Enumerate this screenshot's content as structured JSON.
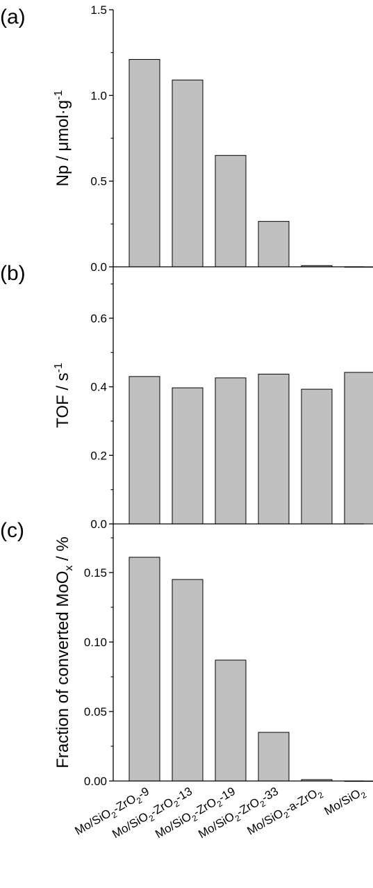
{
  "chart_data": [
    {
      "type": "bar",
      "panel_label": "(a)",
      "ylabel_main": "Np / μmol·g",
      "ylabel_sup": "-1",
      "ylim": [
        0,
        1.5
      ],
      "yticks": [
        "0.0",
        "0.5",
        "1.0",
        "1.5"
      ],
      "ytick_values": [
        0,
        0.5,
        1.0,
        1.5
      ],
      "values": [
        1.21,
        1.09,
        0.65,
        0.265,
        0.007,
        0.0
      ]
    },
    {
      "type": "bar",
      "panel_label": "(b)",
      "ylabel_main": "TOF / s",
      "ylabel_sup": "-1",
      "ylim": [
        0,
        0.75
      ],
      "yticks": [
        "0.0",
        "0.2",
        "0.4",
        "0.6"
      ],
      "ytick_values": [
        0,
        0.2,
        0.4,
        0.6
      ],
      "values": [
        0.43,
        0.397,
        0.426,
        0.437,
        0.393,
        0.442
      ]
    },
    {
      "type": "bar",
      "panel_label": "(c)",
      "ylabel_main": "Fraction of converted MoO",
      "ylabel_sub": "x",
      "ylabel_tail": " / %",
      "ylim": [
        0,
        0.185
      ],
      "yticks": [
        "0.00",
        "0.05",
        "0.10",
        "0.15"
      ],
      "ytick_values": [
        0,
        0.05,
        0.1,
        0.15
      ],
      "values": [
        0.161,
        0.145,
        0.087,
        0.035,
        0.001,
        0.0
      ]
    }
  ],
  "categories": [
    {
      "parts": [
        [
          "Mo/SiO",
          "n"
        ],
        [
          "2",
          "sub"
        ],
        [
          "-ZrO",
          "n"
        ],
        [
          "2",
          "sub"
        ],
        [
          "-9",
          "n"
        ]
      ]
    },
    {
      "parts": [
        [
          "Mo/SiO",
          "n"
        ],
        [
          "2",
          "sub"
        ],
        [
          "-ZrO",
          "n"
        ],
        [
          "2",
          "sub"
        ],
        [
          "-13",
          "n"
        ]
      ]
    },
    {
      "parts": [
        [
          "Mo/SiO",
          "n"
        ],
        [
          "2",
          "sub"
        ],
        [
          "-ZrO",
          "n"
        ],
        [
          "2",
          "sub"
        ],
        [
          "-19",
          "n"
        ]
      ]
    },
    {
      "parts": [
        [
          "Mo/SiO",
          "n"
        ],
        [
          "2",
          "sub"
        ],
        [
          "-ZrO",
          "n"
        ],
        [
          "2",
          "sub"
        ],
        [
          "-33",
          "n"
        ]
      ]
    },
    {
      "parts": [
        [
          "Mo/SiO",
          "n"
        ],
        [
          "2",
          "sub"
        ],
        [
          "-a-ZrO",
          "n"
        ],
        [
          "2",
          "sub"
        ]
      ]
    },
    {
      "parts": [
        [
          "Mo/SiO",
          "n"
        ],
        [
          "2",
          "sub"
        ]
      ]
    }
  ],
  "colors": {
    "bar_fill": "#c0c0c0",
    "bar_stroke": "#000000",
    "axis": "#000000"
  }
}
